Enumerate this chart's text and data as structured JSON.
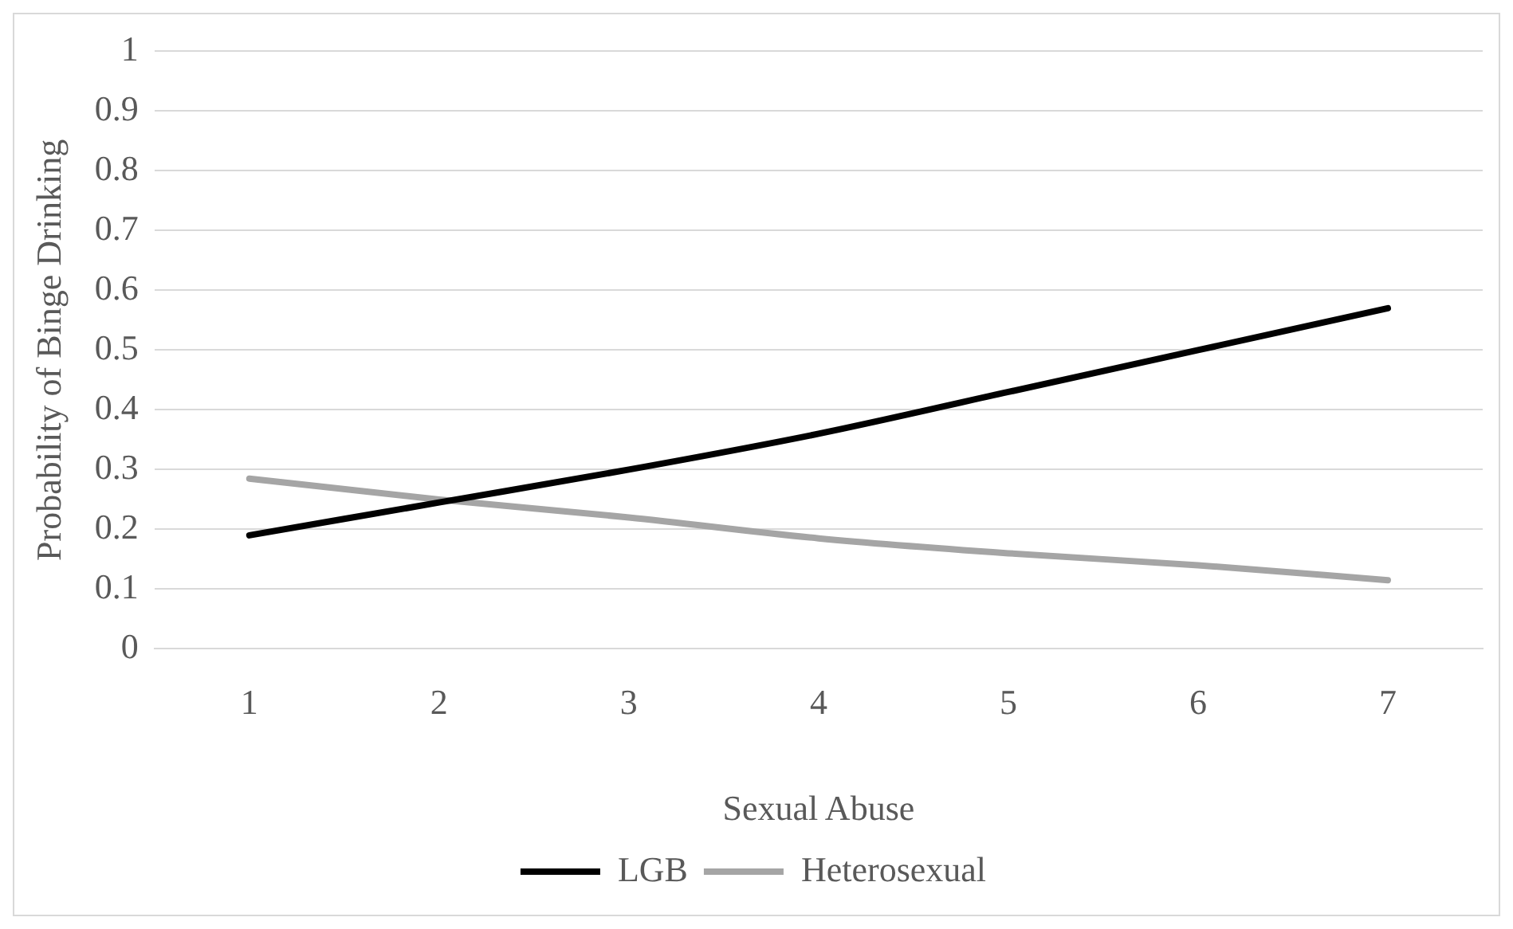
{
  "chart_data": {
    "type": "line",
    "xlabel": "Sexual Abuse",
    "ylabel": "Probability of Binge Drinking",
    "categories": [
      "1",
      "2",
      "3",
      "4",
      "5",
      "6",
      "7"
    ],
    "series": [
      {
        "name": "LGB",
        "color": "#000000",
        "values": [
          0.19,
          0.245,
          0.3,
          0.36,
          0.43,
          0.5,
          0.57
        ]
      },
      {
        "name": "Heterosexual",
        "color": "#a5a5a5",
        "values": [
          0.285,
          0.25,
          0.22,
          0.185,
          0.16,
          0.14,
          0.115
        ]
      }
    ],
    "ylim": [
      0,
      1
    ],
    "yticks": [
      0,
      0.1,
      0.2,
      0.3,
      0.4,
      0.5,
      0.6,
      0.7,
      0.8,
      0.9,
      1
    ],
    "grid": "y",
    "legend": "bottom",
    "marker": "none",
    "line_style": "solid"
  }
}
